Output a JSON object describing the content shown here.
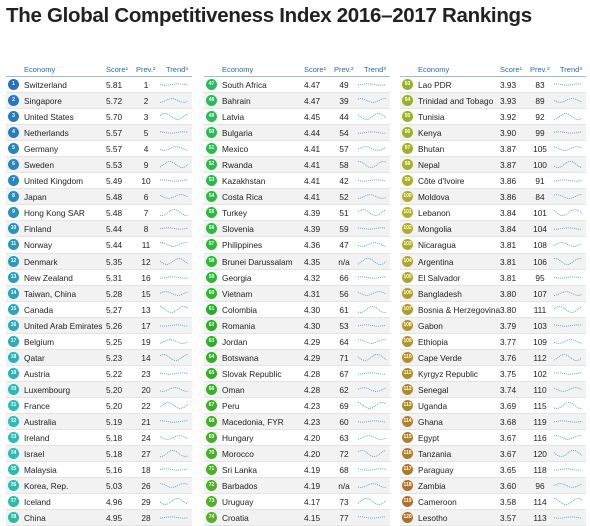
{
  "title": "The Global Competitiveness Index 2016–2017 Rankings",
  "header": {
    "economy": "Economy",
    "score": "Score¹",
    "prev": "Prev.²",
    "trend": "Trend³"
  },
  "panels": [
    {
      "rows": [
        [
          "1",
          "Switzerland",
          "5.81",
          "1"
        ],
        [
          "2",
          "Singapore",
          "5.72",
          "2"
        ],
        [
          "3",
          "United States",
          "5.70",
          "3"
        ],
        [
          "4",
          "Netherlands",
          "5.57",
          "5"
        ],
        [
          "5",
          "Germany",
          "5.57",
          "4"
        ],
        [
          "6",
          "Sweden",
          "5.53",
          "9"
        ],
        [
          "7",
          "United Kingdom",
          "5.49",
          "10"
        ],
        [
          "8",
          "Japan",
          "5.48",
          "6"
        ],
        [
          "9",
          "Hong Kong SAR",
          "5.48",
          "7"
        ],
        [
          "10",
          "Finland",
          "5.44",
          "8"
        ],
        [
          "11",
          "Norway",
          "5.44",
          "11"
        ],
        [
          "12",
          "Denmark",
          "5.35",
          "12"
        ],
        [
          "13",
          "New Zealand",
          "5.31",
          "16"
        ],
        [
          "14",
          "Taiwan, China",
          "5.28",
          "15"
        ],
        [
          "15",
          "Canada",
          "5.27",
          "13"
        ],
        [
          "16",
          "United Arab Emirates",
          "5.26",
          "17"
        ],
        [
          "17",
          "Belgium",
          "5.25",
          "19"
        ],
        [
          "18",
          "Qatar",
          "5.23",
          "14"
        ],
        [
          "19",
          "Austria",
          "5.22",
          "23"
        ],
        [
          "20",
          "Luxembourg",
          "5.20",
          "20"
        ],
        [
          "21",
          "France",
          "5.20",
          "22"
        ],
        [
          "22",
          "Australia",
          "5.19",
          "21"
        ],
        [
          "23",
          "Ireland",
          "5.18",
          "24"
        ],
        [
          "24",
          "Israel",
          "5.18",
          "27"
        ],
        [
          "25",
          "Malaysia",
          "5.16",
          "18"
        ],
        [
          "26",
          "Korea, Rep.",
          "5.03",
          "26"
        ],
        [
          "27",
          "Iceland",
          "4.96",
          "29"
        ],
        [
          "28",
          "China",
          "4.95",
          "28"
        ]
      ]
    },
    {
      "rows": [
        [
          "47",
          "South Africa",
          "4.47",
          "49"
        ],
        [
          "48",
          "Bahrain",
          "4.47",
          "39"
        ],
        [
          "49",
          "Latvia",
          "4.45",
          "44"
        ],
        [
          "50",
          "Bulgaria",
          "4.44",
          "54"
        ],
        [
          "51",
          "Mexico",
          "4.41",
          "57"
        ],
        [
          "52",
          "Rwanda",
          "4.41",
          "58"
        ],
        [
          "53",
          "Kazakhstan",
          "4.41",
          "42"
        ],
        [
          "54",
          "Costa Rica",
          "4.41",
          "52"
        ],
        [
          "55",
          "Turkey",
          "4.39",
          "51"
        ],
        [
          "56",
          "Slovenia",
          "4.39",
          "59"
        ],
        [
          "57",
          "Philippines",
          "4.36",
          "47"
        ],
        [
          "58",
          "Brunei Darussalam",
          "4.35",
          "n/a"
        ],
        [
          "59",
          "Georgia",
          "4.32",
          "66"
        ],
        [
          "60",
          "Vietnam",
          "4.31",
          "56"
        ],
        [
          "61",
          "Colombia",
          "4.30",
          "61"
        ],
        [
          "62",
          "Romania",
          "4.30",
          "53"
        ],
        [
          "63",
          "Jordan",
          "4.29",
          "64"
        ],
        [
          "64",
          "Botswana",
          "4.29",
          "71"
        ],
        [
          "65",
          "Slovak Republic",
          "4.28",
          "67"
        ],
        [
          "66",
          "Oman",
          "4.28",
          "62"
        ],
        [
          "67",
          "Peru",
          "4.23",
          "69"
        ],
        [
          "68",
          "Macedonia, FYR",
          "4.23",
          "60"
        ],
        [
          "69",
          "Hungary",
          "4.20",
          "63"
        ],
        [
          "70",
          "Morocco",
          "4.20",
          "72"
        ],
        [
          "71",
          "Sri Lanka",
          "4.19",
          "68"
        ],
        [
          "72",
          "Barbados",
          "4.19",
          "n/a"
        ],
        [
          "73",
          "Uruguay",
          "4.17",
          "73"
        ],
        [
          "74",
          "Croatia",
          "4.15",
          "77"
        ]
      ]
    },
    {
      "rows": [
        [
          "93",
          "Lao PDR",
          "3.93",
          "83"
        ],
        [
          "94",
          "Trinidad and Tobago",
          "3.93",
          "89"
        ],
        [
          "95",
          "Tunisia",
          "3.92",
          "92"
        ],
        [
          "96",
          "Kenya",
          "3.90",
          "99"
        ],
        [
          "97",
          "Bhutan",
          "3.87",
          "105"
        ],
        [
          "98",
          "Nepal",
          "3.87",
          "100"
        ],
        [
          "99",
          "Côte d'Ivoire",
          "3.86",
          "91"
        ],
        [
          "100",
          "Moldova",
          "3.86",
          "84"
        ],
        [
          "101",
          "Lebanon",
          "3.84",
          "101"
        ],
        [
          "102",
          "Mongolia",
          "3.84",
          "104"
        ],
        [
          "103",
          "Nicaragua",
          "3.81",
          "108"
        ],
        [
          "104",
          "Argentina",
          "3.81",
          "106"
        ],
        [
          "105",
          "El Salvador",
          "3.81",
          "95"
        ],
        [
          "106",
          "Bangladesh",
          "3.80",
          "107"
        ],
        [
          "107",
          "Bosnia & Herzegovina",
          "3.80",
          "111"
        ],
        [
          "108",
          "Gabon",
          "3.79",
          "103"
        ],
        [
          "109",
          "Ethiopia",
          "3.77",
          "109"
        ],
        [
          "110",
          "Cape Verde",
          "3.76",
          "112"
        ],
        [
          "111",
          "Kyrgyz Republic",
          "3.75",
          "102"
        ],
        [
          "112",
          "Senegal",
          "3.74",
          "110"
        ],
        [
          "113",
          "Uganda",
          "3.69",
          "115"
        ],
        [
          "114",
          "Ghana",
          "3.68",
          "119"
        ],
        [
          "115",
          "Egypt",
          "3.67",
          "116"
        ],
        [
          "116",
          "Tanzania",
          "3.67",
          "120"
        ],
        [
          "117",
          "Paraguay",
          "3.65",
          "118"
        ],
        [
          "118",
          "Zambia",
          "3.60",
          "96"
        ],
        [
          "119",
          "Cameroon",
          "3.58",
          "114"
        ],
        [
          "120",
          "Lesotho",
          "3.57",
          "113"
        ]
      ]
    }
  ]
}
